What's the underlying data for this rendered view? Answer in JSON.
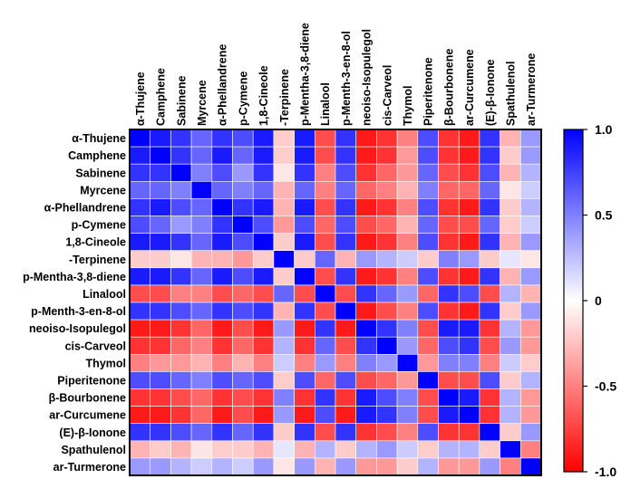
{
  "chart_data": {
    "type": "heatmap",
    "title": "",
    "xlabel": "",
    "ylabel": "",
    "variables": [
      "α-Thujene",
      "Camphene",
      "Sabinene",
      "Myrcene",
      "α-Phellandrene",
      "p-Cymene",
      "1,8-Cineole",
      "-Terpinene",
      "p-Mentha-3,8-diene",
      "Linalool",
      "p-Menth-3-en-8-ol",
      "neoiso-Isopulegol",
      "cis-Carveol",
      "Thymol",
      "Piperitenone",
      "β-Bourbonene",
      "ar-Curcumene",
      "(E)-β-Ionone",
      "Spathulenol",
      "ar-Turmerone"
    ],
    "values": [
      [
        1.0,
        0.9,
        0.8,
        0.6,
        0.8,
        0.7,
        0.9,
        -0.2,
        0.9,
        -0.7,
        0.8,
        -0.9,
        -0.8,
        -0.5,
        0.7,
        -0.8,
        -0.9,
        0.8,
        -0.3,
        0.4
      ],
      [
        0.9,
        1.0,
        0.8,
        0.6,
        0.9,
        0.6,
        0.9,
        -0.2,
        0.9,
        -0.7,
        0.8,
        -0.9,
        -0.8,
        -0.4,
        0.7,
        -0.8,
        -0.9,
        0.8,
        -0.2,
        0.4
      ],
      [
        0.8,
        0.8,
        1.0,
        0.5,
        0.7,
        0.4,
        0.8,
        -0.1,
        0.8,
        -0.5,
        0.7,
        -0.8,
        -0.6,
        -0.4,
        0.6,
        -0.7,
        -0.8,
        0.7,
        -0.3,
        0.3
      ],
      [
        0.6,
        0.6,
        0.5,
        1.0,
        0.6,
        0.5,
        0.6,
        -0.3,
        0.6,
        -0.5,
        0.6,
        -0.6,
        -0.5,
        -0.3,
        0.5,
        -0.6,
        -0.6,
        0.6,
        -0.1,
        0.2
      ],
      [
        0.8,
        0.9,
        0.7,
        0.6,
        1.0,
        0.8,
        0.9,
        -0.3,
        0.9,
        -0.7,
        0.8,
        -0.9,
        -0.8,
        -0.5,
        0.7,
        -0.8,
        -0.9,
        0.8,
        -0.2,
        0.3
      ],
      [
        0.7,
        0.6,
        0.4,
        0.5,
        0.8,
        1.0,
        0.7,
        -0.4,
        0.7,
        -0.6,
        0.7,
        -0.7,
        -0.6,
        -0.3,
        0.6,
        -0.7,
        -0.7,
        0.6,
        -0.2,
        0.2
      ],
      [
        0.9,
        0.9,
        0.8,
        0.6,
        0.9,
        0.7,
        1.0,
        -0.2,
        0.9,
        -0.7,
        0.8,
        -0.9,
        -0.8,
        -0.5,
        0.7,
        -0.8,
        -0.9,
        0.8,
        -0.3,
        0.4
      ],
      [
        -0.2,
        -0.2,
        -0.1,
        -0.3,
        -0.3,
        -0.4,
        -0.2,
        1.0,
        -0.2,
        0.6,
        -0.3,
        0.4,
        0.3,
        0.2,
        -0.2,
        0.5,
        0.4,
        -0.2,
        0.1,
        -0.1
      ],
      [
        0.9,
        0.9,
        0.8,
        0.6,
        0.9,
        0.7,
        0.9,
        -0.2,
        1.0,
        -0.7,
        0.8,
        -0.9,
        -0.8,
        -0.5,
        0.7,
        -0.8,
        -0.9,
        0.8,
        -0.3,
        0.4
      ],
      [
        -0.7,
        -0.7,
        -0.5,
        -0.5,
        -0.7,
        -0.6,
        -0.7,
        0.6,
        -0.7,
        1.0,
        -0.7,
        0.8,
        0.6,
        0.4,
        -0.6,
        0.8,
        0.7,
        -0.7,
        0.3,
        -0.3
      ],
      [
        0.8,
        0.8,
        0.7,
        0.6,
        0.8,
        0.7,
        0.8,
        -0.3,
        0.8,
        -0.7,
        1.0,
        -0.9,
        -0.7,
        -0.5,
        0.7,
        -0.8,
        -0.9,
        0.8,
        -0.2,
        0.4
      ],
      [
        -0.9,
        -0.9,
        -0.8,
        -0.6,
        -0.9,
        -0.7,
        -0.9,
        0.4,
        -0.9,
        0.8,
        -0.9,
        1.0,
        0.8,
        0.5,
        -0.7,
        0.9,
        0.9,
        -0.8,
        0.3,
        -0.4
      ],
      [
        -0.8,
        -0.8,
        -0.6,
        -0.5,
        -0.8,
        -0.6,
        -0.8,
        0.3,
        -0.8,
        0.6,
        -0.7,
        0.8,
        1.0,
        0.4,
        -0.6,
        0.7,
        0.8,
        -0.7,
        0.4,
        -0.4
      ],
      [
        -0.5,
        -0.4,
        -0.4,
        -0.3,
        -0.5,
        -0.3,
        -0.5,
        0.2,
        -0.5,
        0.4,
        -0.5,
        0.5,
        0.4,
        1.0,
        -0.4,
        0.5,
        0.5,
        -0.5,
        0.2,
        -0.2
      ],
      [
        0.7,
        0.7,
        0.6,
        0.5,
        0.7,
        0.6,
        0.7,
        -0.2,
        0.7,
        -0.6,
        0.7,
        -0.7,
        -0.6,
        -0.4,
        1.0,
        -0.7,
        -0.7,
        0.7,
        -0.2,
        0.3
      ],
      [
        -0.8,
        -0.8,
        -0.7,
        -0.6,
        -0.8,
        -0.7,
        -0.8,
        0.5,
        -0.8,
        0.8,
        -0.8,
        0.9,
        0.7,
        0.5,
        -0.7,
        1.0,
        0.9,
        -0.8,
        0.3,
        -0.4
      ],
      [
        -0.9,
        -0.9,
        -0.8,
        -0.6,
        -0.9,
        -0.7,
        -0.9,
        0.4,
        -0.9,
        0.7,
        -0.9,
        0.9,
        0.8,
        0.5,
        -0.7,
        0.9,
        1.0,
        -0.8,
        0.3,
        -0.4
      ],
      [
        0.8,
        0.8,
        0.7,
        0.6,
        0.8,
        0.6,
        0.8,
        -0.2,
        0.8,
        -0.7,
        0.8,
        -0.8,
        -0.7,
        -0.5,
        0.7,
        -0.8,
        -0.8,
        1.0,
        -0.2,
        0.4
      ],
      [
        -0.3,
        -0.2,
        -0.3,
        -0.1,
        -0.2,
        -0.2,
        -0.3,
        0.1,
        -0.3,
        0.3,
        -0.2,
        0.3,
        0.4,
        0.2,
        -0.2,
        0.3,
        0.3,
        -0.2,
        1.0,
        -0.5
      ],
      [
        0.4,
        0.4,
        0.3,
        0.2,
        0.3,
        0.2,
        0.4,
        -0.1,
        0.4,
        -0.3,
        0.4,
        -0.4,
        -0.4,
        -0.2,
        0.3,
        -0.4,
        -0.4,
        0.4,
        -0.5,
        1.0
      ]
    ],
    "colorbar": {
      "min": -1.0,
      "max": 1.0,
      "ticks": [
        1.0,
        0.5,
        0,
        -0.5,
        -1.0
      ],
      "tick_labels": [
        "1.0",
        "0.5",
        "0",
        "-0.5",
        "-1.0"
      ],
      "low_color": "#ff0000",
      "mid_color": "#ffffff",
      "high_color": "#0000ff"
    }
  }
}
